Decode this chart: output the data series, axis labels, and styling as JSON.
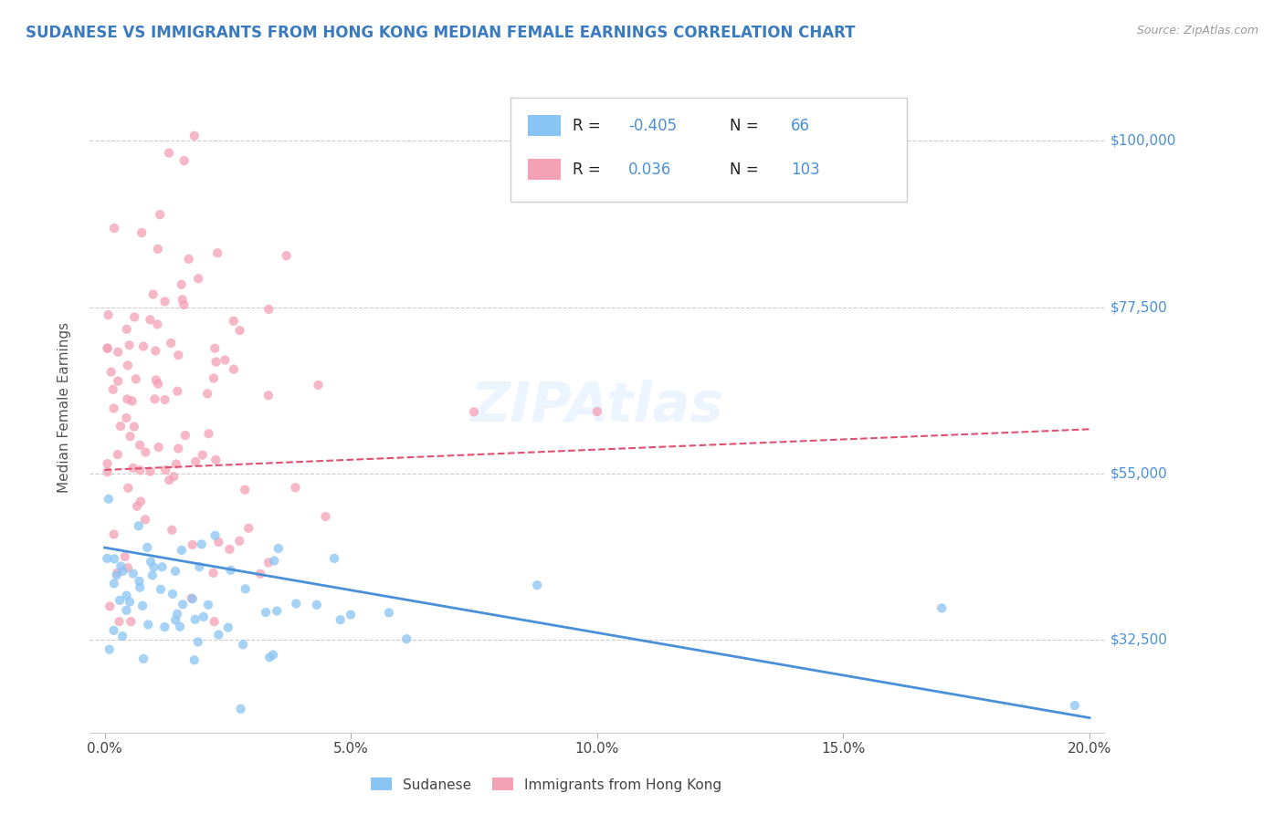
{
  "title": "SUDANESE VS IMMIGRANTS FROM HONG KONG MEDIAN FEMALE EARNINGS CORRELATION CHART",
  "source": "Source: ZipAtlas.com",
  "ylabel": "Median Female Earnings",
  "xlabel_ticks": [
    "0.0%",
    "5.0%",
    "10.0%",
    "15.0%",
    "20.0%"
  ],
  "xlabel_vals": [
    0.0,
    5.0,
    10.0,
    15.0,
    20.0
  ],
  "yticks": [
    32500,
    55000,
    77500,
    100000
  ],
  "ytick_labels": [
    "$32,500",
    "$55,000",
    "$77,500",
    "$100,000"
  ],
  "xlim": [
    -0.3,
    20.3
  ],
  "ylim": [
    20000,
    108000
  ],
  "blue_color": "#89c4f4",
  "pink_color": "#f4a0b5",
  "blue_line_color": "#4a90d9",
  "pink_line_color": "#e05070",
  "title_color": "#3a7abf",
  "ytick_color": "#4a90d9",
  "watermark_text": "ZIPAtlas",
  "blue_seed": 10,
  "pink_seed": 20
}
